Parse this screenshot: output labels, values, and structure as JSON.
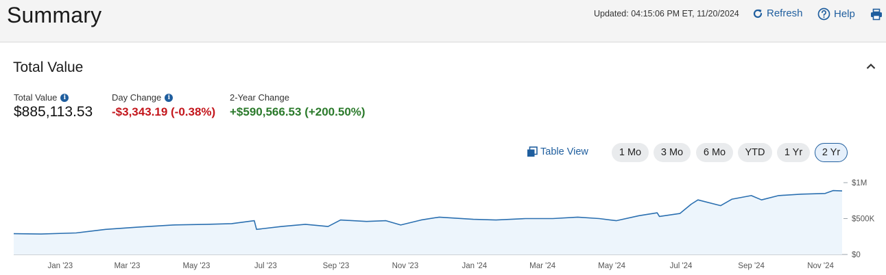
{
  "header": {
    "title": "Summary",
    "updated": "Updated: 04:15:06 PM ET, 11/20/2024",
    "refresh_label": "Refresh",
    "help_label": "Help"
  },
  "section": {
    "title": "Total Value"
  },
  "metrics": {
    "total_value_label": "Total Value",
    "total_value": "$885,113.53",
    "day_change_label": "Day Change",
    "day_change": "-$3,343.19 (-0.38%)",
    "two_year_label": "2-Year Change",
    "two_year_change": "+$590,566.53 (+200.50%)"
  },
  "controls": {
    "table_view_label": "Table View",
    "ranges": [
      "1 Mo",
      "3 Mo",
      "6 Mo",
      "YTD",
      "1 Yr",
      "2 Yr"
    ],
    "active_range": "2 Yr"
  },
  "colors": {
    "accent": "#1f5e9e",
    "negative": "#c3161c",
    "positive": "#2b7a2b",
    "chart_line": "#2a6fb0",
    "chart_fill": "#edf5fc"
  },
  "icons": [
    "refresh-icon",
    "help-icon",
    "print-icon",
    "info-icon",
    "chevron-up-icon",
    "table-view-icon"
  ],
  "chart_data": {
    "type": "area",
    "ylim": [
      0,
      1000000
    ],
    "y_ticks": [
      {
        "value": 1000000,
        "label": "$1M"
      },
      {
        "value": 500000,
        "label": "$500K"
      },
      {
        "value": 0,
        "label": "$0"
      }
    ],
    "x_ticks": [
      "Jan '23",
      "Mar '23",
      "May '23",
      "Jul '23",
      "Sep '23",
      "Nov '23",
      "Jan '24",
      "Mar '24",
      "May '24",
      "Jul '24",
      "Sep '24",
      "Nov '24"
    ],
    "series": [
      {
        "x": [
          "2022-11-21",
          "2022-12-15",
          "2023-01-15",
          "2023-02-10",
          "2023-03-10",
          "2023-04-10",
          "2023-05-10",
          "2023-06-01",
          "2023-06-21",
          "2023-06-23",
          "2023-07-15",
          "2023-08-05",
          "2023-08-25",
          "2023-09-05",
          "2023-09-28",
          "2023-10-15",
          "2023-10-28",
          "2023-11-15",
          "2023-12-01",
          "2023-12-31",
          "2024-01-20",
          "2024-02-15",
          "2024-03-10",
          "2024-04-01",
          "2024-04-20",
          "2024-05-05",
          "2024-05-25",
          "2024-06-10",
          "2024-06-12",
          "2024-06-30",
          "2024-07-10",
          "2024-07-16",
          "2024-08-05",
          "2024-08-15",
          "2024-09-01",
          "2024-09-10",
          "2024-09-25",
          "2024-10-15",
          "2024-11-05",
          "2024-11-12",
          "2024-11-20"
        ],
        "values": [
          290000,
          285000,
          300000,
          350000,
          380000,
          410000,
          420000,
          430000,
          470000,
          350000,
          390000,
          420000,
          390000,
          480000,
          460000,
          470000,
          410000,
          480000,
          520000,
          490000,
          480000,
          500000,
          500000,
          520000,
          500000,
          470000,
          540000,
          580000,
          530000,
          570000,
          700000,
          760000,
          680000,
          770000,
          820000,
          760000,
          820000,
          840000,
          850000,
          890000,
          885113
        ]
      }
    ]
  }
}
